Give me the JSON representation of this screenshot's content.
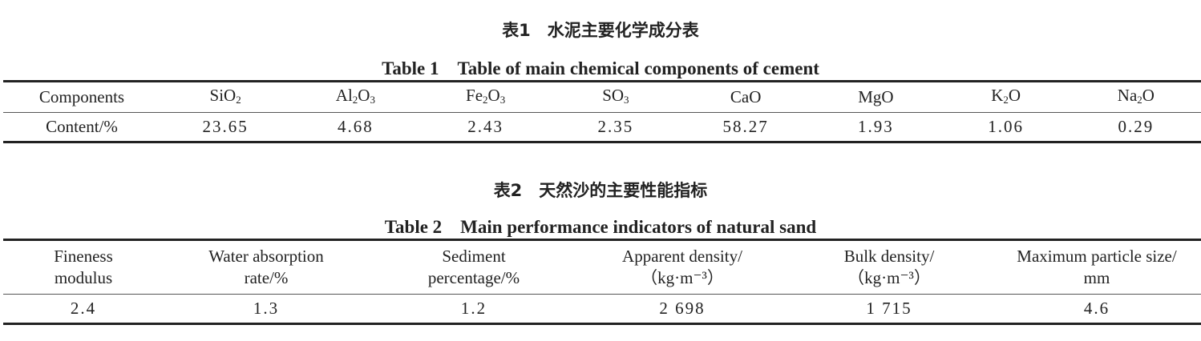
{
  "table1": {
    "caption_cn": "表1　水泥主要化学成分表",
    "caption_en": "Table 1　Table of main chemical components of cement",
    "row_header": "Components",
    "row_label": "Content/%",
    "components": [
      {
        "formula": [
          [
            "Si",
            ""
          ],
          [
            "O",
            "2"
          ]
        ],
        "content": "23.65"
      },
      {
        "formula": [
          [
            "Al",
            "2"
          ],
          [
            "O",
            "3"
          ]
        ],
        "content": "4.68"
      },
      {
        "formula": [
          [
            "Fe",
            "2"
          ],
          [
            "O",
            "3"
          ]
        ],
        "content": "2.43"
      },
      {
        "formula": [
          [
            "S",
            ""
          ],
          [
            "O",
            "3"
          ]
        ],
        "content": "2.35"
      },
      {
        "formula": [
          [
            "CaO",
            ""
          ]
        ],
        "content": "58.27"
      },
      {
        "formula": [
          [
            "MgO",
            ""
          ]
        ],
        "content": "1.93"
      },
      {
        "formula": [
          [
            "K",
            "2"
          ],
          [
            "O",
            ""
          ]
        ],
        "content": "1.06"
      },
      {
        "formula": [
          [
            "Na",
            "2"
          ],
          [
            "O",
            ""
          ]
        ],
        "content": "0.29"
      }
    ]
  },
  "table2": {
    "caption_cn": "表2　天然沙的主要性能指标",
    "caption_en": "Table 2　Main performance indicators of natural sand",
    "columns": [
      {
        "line1": "Fineness",
        "line2": "modulus",
        "value": "2.4"
      },
      {
        "line1": "Water absorption",
        "line2": "rate/%",
        "value": "1.3"
      },
      {
        "line1": "Sediment",
        "line2": "percentage/%",
        "value": "1.2"
      },
      {
        "line1": "Apparent density/",
        "line2": "（kg·m⁻³）",
        "value": "2 698"
      },
      {
        "line1": "Bulk density/",
        "line2": "（kg·m⁻³）",
        "value": "1 715"
      },
      {
        "line1": "Maximum particle size/",
        "line2": "mm",
        "value": "4.6"
      }
    ]
  }
}
